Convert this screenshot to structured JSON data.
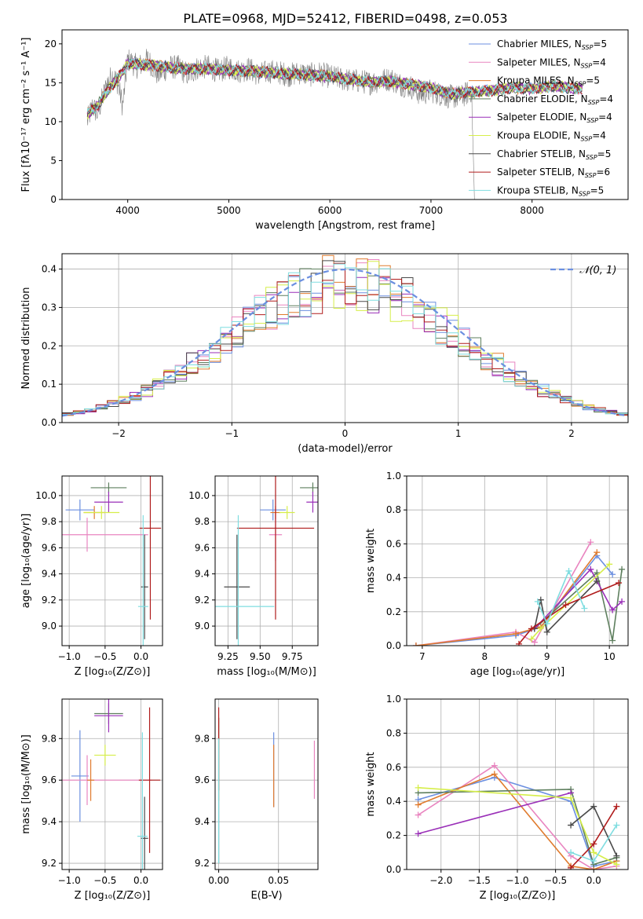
{
  "figure_title": "PLATE=0968, MJD=52412, FIBERID=0498, z=0.053",
  "models": [
    {
      "name": "Chabrier MILES",
      "nssp": "5",
      "color": "#6B8FE0"
    },
    {
      "name": "Salpeter MILES",
      "nssp": "4",
      "color": "#E985C0"
    },
    {
      "name": "Kroupa MILES",
      "nssp": "5",
      "color": "#E07B2E"
    },
    {
      "name": "Chabrier ELODIE",
      "nssp": "4",
      "color": "#5E7F5E"
    },
    {
      "name": "Salpeter ELODIE",
      "nssp": "4",
      "color": "#9A2FB8"
    },
    {
      "name": "Kroupa ELODIE",
      "nssp": "4",
      "color": "#D6EE4A"
    },
    {
      "name": "Chabrier STELIB",
      "nssp": "5",
      "color": "#4A4A4A"
    },
    {
      "name": "Salpeter STELIB",
      "nssp": "6",
      "color": "#B01C1C"
    },
    {
      "name": "Kroupa STELIB",
      "nssp": "5",
      "color": "#7FDDE0"
    }
  ],
  "chart_data": [
    {
      "id": "spectrum",
      "type": "line",
      "xlabel": "wavelength [Angstrom, rest frame]",
      "ylabel": "Flux [fλ10⁻¹⁷ erg cm⁻² s⁻¹ A⁻¹]",
      "xlim": [
        3350,
        8950
      ],
      "ylim": [
        0,
        21.8
      ],
      "xticks": [
        4000,
        5000,
        6000,
        7000,
        8000
      ],
      "yticks": [
        0,
        5,
        10,
        15,
        20
      ],
      "grid": false,
      "legend": "top-right",
      "data_series": {
        "name": "",
        "color": "#808080",
        "x": [
          3600,
          3650,
          3700,
          3750,
          3800,
          3850,
          3900,
          3950,
          4000,
          4100,
          4200,
          4300,
          4400,
          4500,
          4600,
          4700,
          4800,
          4900,
          5000,
          5100,
          5200,
          5300,
          5400,
          5500,
          5600,
          5700,
          5800,
          5900,
          6000,
          6100,
          6200,
          6300,
          6400,
          6500,
          6600,
          6700,
          6800,
          6900,
          7000,
          7100,
          7200,
          7300,
          7400,
          7430
        ],
        "y": [
          10,
          12,
          11,
          13,
          15,
          16,
          15,
          12,
          18,
          17,
          18,
          16,
          17,
          17,
          16,
          17,
          17,
          16.5,
          17,
          16.5,
          16.8,
          16,
          16.5,
          16.3,
          16,
          16.3,
          16,
          16.2,
          15.8,
          15.5,
          15.3,
          15.2,
          15,
          15.3,
          15.5,
          14.8,
          14.5,
          13.5,
          14,
          13.5,
          13.2,
          13.2,
          14,
          0
        ]
      },
      "model_curve": {
        "x": [
          3600,
          3700,
          3800,
          3900,
          4000,
          4200,
          4400,
          4600,
          4800,
          5000,
          5200,
          5400,
          5600,
          5800,
          6000,
          6200,
          6400,
          6600,
          6800,
          7000,
          7200,
          7400,
          7600,
          7800,
          8000,
          8200,
          8400,
          8500
        ],
        "y": [
          11,
          12,
          14,
          15.5,
          17.5,
          17.3,
          17,
          16.8,
          16.8,
          16.6,
          16.5,
          16.3,
          16.1,
          16,
          15.8,
          15.4,
          15.1,
          15.2,
          14.8,
          14.3,
          13.6,
          13.8,
          14,
          14.4,
          14.2,
          14.6,
          14.3,
          14.2
        ]
      }
    },
    {
      "id": "residuals",
      "type": "histogram",
      "xlabel": "(data-model)/error",
      "ylabel": "Normed distribution",
      "xlim": [
        -2.5,
        2.5
      ],
      "ylim": [
        0,
        0.44
      ],
      "xticks": [
        -2,
        -1,
        0,
        1,
        2
      ],
      "yticks": [
        0.0,
        0.1,
        0.2,
        0.3,
        0.4
      ],
      "grid": true,
      "legend": "top-right",
      "reference": {
        "name": "𝒩(0, 1)",
        "color": "#6B8FE0",
        "mean": 0,
        "sigma": 1
      },
      "bin_width": 0.1
    },
    {
      "id": "age-vs-Z",
      "type": "errorbar",
      "xlabel": "Z [log₁₀(Z/Z⊙)]",
      "ylabel": "age  [log₁₀(age/yr)]",
      "xlim": [
        -1.1,
        0.3
      ],
      "ylim": [
        8.85,
        10.15
      ],
      "xticks": [
        -1.0,
        -0.5,
        0.0
      ],
      "yticks": [
        9.0,
        9.2,
        9.4,
        9.6,
        9.8,
        10.0
      ],
      "grid": true,
      "points": [
        {
          "m": 0,
          "x": -0.85,
          "y": 9.89,
          "ex": 0.2,
          "ey": 0.08
        },
        {
          "m": 1,
          "x": -0.75,
          "y": 9.7,
          "ex": 0.85,
          "ey": 0.13
        },
        {
          "m": 2,
          "x": -0.65,
          "y": 9.87,
          "ex": 0.15,
          "ey": 0.05
        },
        {
          "m": 3,
          "x": -0.45,
          "y": 10.06,
          "ex": 0.25,
          "ey": 0.04
        },
        {
          "m": 4,
          "x": -0.45,
          "y": 9.95,
          "ex": 0.2,
          "ey": 0.08
        },
        {
          "m": 5,
          "x": -0.55,
          "y": 9.87,
          "ex": 0.25,
          "ey": 0.05
        },
        {
          "m": 6,
          "x": 0.05,
          "y": 9.3,
          "ex": 0.05,
          "ey": 0.4
        },
        {
          "m": 7,
          "x": 0.13,
          "y": 9.75,
          "ex": 0.15,
          "ey": 0.7
        },
        {
          "m": 8,
          "x": 0.03,
          "y": 9.15,
          "ex": 0.07,
          "ey": 0.7
        }
      ]
    },
    {
      "id": "age-vs-mass",
      "type": "errorbar",
      "xlabel": "mass [log₁₀(M/M⊙)]",
      "ylabel": "",
      "xlim": [
        9.15,
        9.95
      ],
      "ylim": [
        8.85,
        10.15
      ],
      "xticks": [
        9.25,
        9.5,
        9.75
      ],
      "yticks": [
        9.0,
        9.2,
        9.4,
        9.6,
        9.8,
        10.0
      ],
      "grid": true,
      "points": [
        {
          "m": 0,
          "x": 9.6,
          "y": 9.89,
          "ex": 0.1,
          "ey": 0.08
        },
        {
          "m": 1,
          "x": 9.62,
          "y": 9.7,
          "ex": 0.05,
          "ey": 0.2
        },
        {
          "m": 2,
          "x": 9.62,
          "y": 9.87,
          "ex": 0.04,
          "ey": 0.05
        },
        {
          "m": 3,
          "x": 9.91,
          "y": 10.06,
          "ex": 0.1,
          "ey": 0.04
        },
        {
          "m": 4,
          "x": 9.91,
          "y": 9.95,
          "ex": 0.05,
          "ey": 0.08
        },
        {
          "m": 5,
          "x": 9.71,
          "y": 9.87,
          "ex": 0.06,
          "ey": 0.05
        },
        {
          "m": 6,
          "x": 9.32,
          "y": 9.3,
          "ex": 0.1,
          "ey": 0.4
        },
        {
          "m": 7,
          "x": 9.62,
          "y": 9.75,
          "ex": 0.3,
          "ey": 0.7
        },
        {
          "m": 8,
          "x": 9.33,
          "y": 9.15,
          "ex": 0.28,
          "ey": 0.7
        }
      ]
    },
    {
      "id": "weight-vs-age",
      "type": "line",
      "xlabel": "age  [log₁₀(age/yr)]",
      "ylabel": "mass weight",
      "xlim": [
        6.75,
        10.3
      ],
      "ylim": [
        0,
        1.0
      ],
      "xticks": [
        7,
        8,
        9,
        10
      ],
      "yticks": [
        0.0,
        0.2,
        0.4,
        0.6,
        0.8,
        1.0
      ],
      "grid": true,
      "series": [
        {
          "m": 0,
          "x": [
            6.9,
            8.5,
            8.9,
            9.8,
            10.05
          ],
          "y": [
            0,
            0.06,
            0.11,
            0.53,
            0.42
          ]
        },
        {
          "m": 1,
          "x": [
            6.9,
            8.5,
            8.8,
            9.7
          ],
          "y": [
            0,
            0.08,
            0.02,
            0.61
          ]
        },
        {
          "m": 2,
          "x": [
            6.9,
            8.5,
            8.9,
            9.8
          ],
          "y": [
            0,
            0.07,
            0.11,
            0.55
          ]
        },
        {
          "m": 3,
          "x": [
            8.8,
            9.8,
            10.05,
            10.2
          ],
          "y": [
            0.1,
            0.43,
            0.03,
            0.45
          ]
        },
        {
          "m": 4,
          "x": [
            8.8,
            9.7,
            10.05,
            10.2
          ],
          "y": [
            0.1,
            0.45,
            0.21,
            0.26
          ]
        },
        {
          "m": 5,
          "x": [
            8.75,
            8.9,
            10.0
          ],
          "y": [
            0.04,
            0.1,
            0.48
          ]
        },
        {
          "m": 6,
          "x": [
            8.8,
            8.9,
            9.0,
            9.8
          ],
          "y": [
            0.1,
            0.27,
            0.08,
            0.38
          ]
        },
        {
          "m": 7,
          "x": [
            8.55,
            8.75,
            9.3,
            10.15
          ],
          "y": [
            0.01,
            0.1,
            0.24,
            0.37
          ]
        },
        {
          "m": 8,
          "x": [
            8.85,
            9.0,
            9.35,
            9.6
          ],
          "y": [
            0.26,
            0.13,
            0.44,
            0.22
          ]
        }
      ]
    },
    {
      "id": "mass-vs-Z",
      "type": "errorbar",
      "xlabel": "Z [log₁₀(Z/Z⊙)]",
      "ylabel": "mass [log₁₀(M/M⊙)]",
      "xlim": [
        -1.1,
        0.3
      ],
      "ylim": [
        9.17,
        9.99
      ],
      "xticks": [
        -1.0,
        -0.5,
        0.0
      ],
      "yticks": [
        9.2,
        9.4,
        9.6,
        9.8
      ],
      "grid": true,
      "points": [
        {
          "m": 0,
          "x": -0.85,
          "y": 9.62,
          "ex": 0.12,
          "ey": 0.22
        },
        {
          "m": 1,
          "x": -0.75,
          "y": 9.6,
          "ex": 0.9,
          "ey": 0.12
        },
        {
          "m": 2,
          "x": -0.7,
          "y": 9.6,
          "ex": 0.05,
          "ey": 0.1
        },
        {
          "m": 3,
          "x": -0.45,
          "y": 9.92,
          "ex": 0.2,
          "ey": 0.05
        },
        {
          "m": 4,
          "x": -0.45,
          "y": 9.91,
          "ex": 0.2,
          "ey": 0.08
        },
        {
          "m": 5,
          "x": -0.5,
          "y": 9.72,
          "ex": 0.15,
          "ey": 0.05
        },
        {
          "m": 6,
          "x": 0.05,
          "y": 9.32,
          "ex": 0.05,
          "ey": 0.2
        },
        {
          "m": 7,
          "x": 0.12,
          "y": 9.6,
          "ex": 0.15,
          "ey": 0.35
        },
        {
          "m": 8,
          "x": 0.02,
          "y": 9.33,
          "ex": 0.07,
          "ey": 0.5
        }
      ]
    },
    {
      "id": "mass-vs-EBV",
      "type": "errorbar",
      "xlabel": "E(B-V)",
      "ylabel": "",
      "xlim": [
        -0.003,
        0.083
      ],
      "ylim": [
        9.17,
        9.99
      ],
      "xticks": [
        0.0,
        0.05
      ],
      "yticks": [
        9.2,
        9.4,
        9.6,
        9.8
      ],
      "grid": true,
      "points": [
        {
          "m": 0,
          "x": 0.046,
          "y": 9.65,
          "ex": 0,
          "ey": 0.18
        },
        {
          "m": 1,
          "x": 0.08,
          "y": 9.65,
          "ex": 0,
          "ey": 0.14
        },
        {
          "m": 2,
          "x": 0.046,
          "y": 9.62,
          "ex": 0,
          "ey": 0.15
        },
        {
          "m": 3,
          "x": 0.0,
          "y": 9.7,
          "ex": 0,
          "ey": 0.2
        },
        {
          "m": 4,
          "x": 0.0,
          "y": 9.7,
          "ex": 0,
          "ey": 0.2
        },
        {
          "m": 5,
          "x": 0.0,
          "y": 9.7,
          "ex": 0,
          "ey": 0.2
        },
        {
          "m": 6,
          "x": 0.0,
          "y": 9.35,
          "ex": 0,
          "ey": 0.15
        },
        {
          "m": 7,
          "x": 0.0,
          "y": 9.75,
          "ex": 0,
          "ey": 0.2
        },
        {
          "m": 8,
          "x": 0.0,
          "y": 9.5,
          "ex": 0,
          "ey": 0.3
        }
      ]
    },
    {
      "id": "weight-vs-Z",
      "type": "line",
      "xlabel": "Z [log₁₀(Z/Z⊙)]",
      "ylabel": "mass weight",
      "xlim": [
        -2.45,
        0.45
      ],
      "ylim": [
        0,
        1.0
      ],
      "xticks": [
        -2.0,
        -1.5,
        -1.0,
        -0.5,
        0.0
      ],
      "yticks": [
        0.0,
        0.2,
        0.4,
        0.6,
        0.8,
        1.0
      ],
      "grid": true,
      "series": [
        {
          "m": 0,
          "x": [
            -2.3,
            -1.3,
            -0.3,
            0.0,
            0.3
          ],
          "y": [
            0.41,
            0.54,
            0.4,
            0.02,
            0.05
          ]
        },
        {
          "m": 1,
          "x": [
            -2.3,
            -1.3,
            -0.3,
            0.0,
            0.3
          ],
          "y": [
            0.32,
            0.61,
            0.08,
            0.0,
            0.02
          ]
        },
        {
          "m": 2,
          "x": [
            -2.3,
            -1.3,
            -0.3,
            0.0,
            0.3
          ],
          "y": [
            0.38,
            0.56,
            0.02,
            0.0,
            0.05
          ]
        },
        {
          "m": 3,
          "x": [
            -2.3,
            -0.3,
            0.0,
            0.3
          ],
          "y": [
            0.45,
            0.47,
            0.03,
            0.07
          ]
        },
        {
          "m": 4,
          "x": [
            -2.3,
            -0.3
          ],
          "y": [
            0.21,
            0.45
          ]
        },
        {
          "m": 5,
          "x": [
            -2.3,
            -0.3,
            0.0,
            0.3
          ],
          "y": [
            0.48,
            0.42,
            0.1,
            0.03
          ]
        },
        {
          "m": 6,
          "x": [
            -0.3,
            0.0,
            0.3
          ],
          "y": [
            0.26,
            0.37,
            0.08
          ]
        },
        {
          "m": 7,
          "x": [
            -0.3,
            0.0,
            0.3
          ],
          "y": [
            0.01,
            0.15,
            0.37
          ]
        },
        {
          "m": 8,
          "x": [
            -0.3,
            0.0,
            0.3
          ],
          "y": [
            0.1,
            0.05,
            0.26
          ]
        }
      ]
    }
  ]
}
